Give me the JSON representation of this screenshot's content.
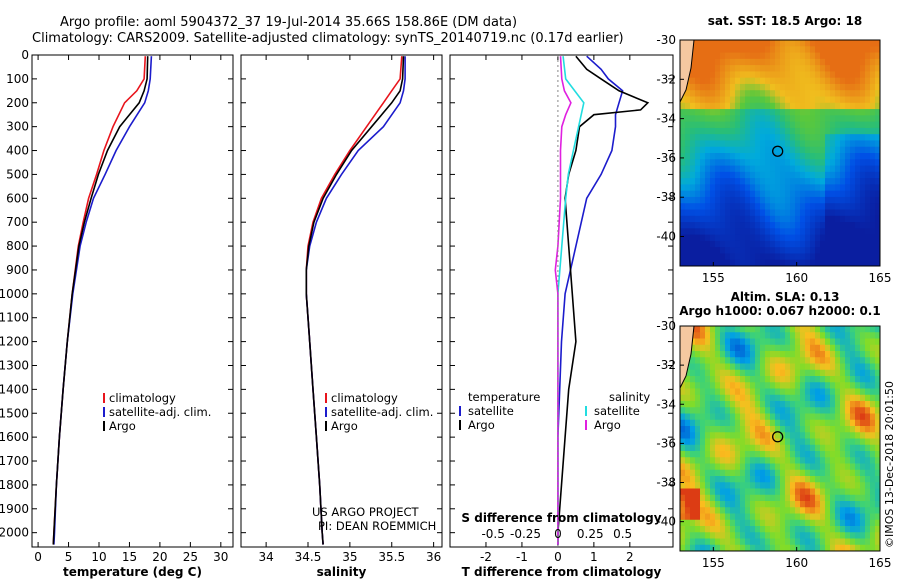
{
  "header": {
    "title_line1": "Argo profile: aoml 5904372_37 19-Jul-2014 35.66S 158.86E (DM data)",
    "title_line2": "Climatology: CARS2009. Satellite-adjusted climatology: synTS_20140719.nc (0.17d earlier)"
  },
  "colors": {
    "climatology": "#e8141c",
    "satellite": "#1c1ccc",
    "argo": "#000000",
    "sat_salinity": "#22dde0",
    "argo_salinity": "#e020e0"
  },
  "chart_data": [
    {
      "type": "line",
      "name": "temperature-profile",
      "xlabel": "temperature (deg C)",
      "ylabel": "",
      "xlim": [
        -1,
        32
      ],
      "ylim": [
        2060,
        0
      ],
      "xticks": [
        0,
        5,
        10,
        15,
        20,
        25,
        30
      ],
      "yticks": [
        0,
        100,
        200,
        300,
        400,
        500,
        600,
        700,
        800,
        900,
        1000,
        1100,
        1200,
        1300,
        1400,
        1500,
        1600,
        1700,
        1800,
        1900,
        2000
      ],
      "legend": [
        "climatology",
        "satellite-adj. clim.",
        "Argo"
      ],
      "series": [
        {
          "name": "climatology",
          "depth": [
            5,
            100,
            150,
            200,
            300,
            400,
            500,
            600,
            700,
            800,
            1000,
            1200,
            1400,
            1600,
            1800,
            2000,
            2050
          ],
          "values": [
            17.6,
            17.4,
            16.2,
            14.2,
            12.3,
            10.8,
            9.6,
            8.3,
            7.4,
            6.6,
            5.6,
            4.8,
            4.1,
            3.5,
            3.0,
            2.6,
            2.5
          ]
        },
        {
          "name": "satellite-adj. clim.",
          "depth": [
            5,
            100,
            150,
            200,
            300,
            400,
            500,
            600,
            700,
            800,
            1000,
            1200,
            1400,
            1600,
            1800,
            2000,
            2050
          ],
          "values": [
            18.6,
            18.4,
            18.1,
            17.5,
            15.0,
            12.8,
            11.0,
            9.1,
            7.9,
            6.9,
            5.7,
            4.8,
            4.1,
            3.5,
            3.0,
            2.7,
            2.6
          ]
        },
        {
          "name": "Argo",
          "depth": [
            5,
            100,
            150,
            200,
            300,
            400,
            500,
            600,
            700,
            800,
            1000,
            1200,
            1400,
            1600,
            1800,
            2000,
            2050
          ],
          "values": [
            18.0,
            17.9,
            17.4,
            16.6,
            13.4,
            11.4,
            9.9,
            8.7,
            7.6,
            6.7,
            5.6,
            4.8,
            4.1,
            3.5,
            3.0,
            2.6,
            2.5
          ]
        }
      ]
    },
    {
      "type": "line",
      "name": "salinity-profile",
      "xlabel": "salinity",
      "ylabel": "",
      "xlim": [
        33.7,
        36.1
      ],
      "ylim": [
        2060,
        0
      ],
      "xticks": [
        34,
        34.5,
        35,
        35.5,
        36
      ],
      "xticklabels": [
        "34",
        "34.5",
        "35",
        "35.5",
        "36"
      ],
      "legend": [
        "climatology",
        "satellite-adj. clim.",
        "Argo"
      ],
      "annotation": [
        "US ARGO PROJECT",
        "PI: DEAN ROEMMICH"
      ],
      "series": [
        {
          "name": "climatology",
          "depth": [
            5,
            100,
            150,
            200,
            300,
            400,
            500,
            600,
            700,
            800,
            900,
            1000,
            1200,
            1400,
            1600,
            1800,
            2000,
            2050
          ],
          "values": [
            35.62,
            35.6,
            35.5,
            35.4,
            35.2,
            35.0,
            34.82,
            34.66,
            34.56,
            34.5,
            34.48,
            34.48,
            34.52,
            34.56,
            34.6,
            34.64,
            34.67,
            34.68
          ]
        },
        {
          "name": "satellite-adj. clim.",
          "depth": [
            5,
            100,
            150,
            200,
            300,
            400,
            500,
            600,
            700,
            800,
            900,
            1000,
            1200,
            1400,
            1600,
            1800,
            2000,
            2050
          ],
          "values": [
            35.66,
            35.66,
            35.64,
            35.6,
            35.4,
            35.1,
            34.9,
            34.72,
            34.6,
            34.52,
            34.48,
            34.48,
            34.52,
            34.56,
            34.6,
            34.64,
            34.67,
            34.68
          ]
        },
        {
          "name": "Argo",
          "depth": [
            5,
            100,
            150,
            200,
            300,
            400,
            500,
            600,
            700,
            800,
            900,
            1000,
            1200,
            1400,
            1600,
            1800,
            2000,
            2050
          ],
          "values": [
            35.64,
            35.63,
            35.6,
            35.5,
            35.26,
            35.02,
            34.84,
            34.68,
            34.57,
            34.51,
            34.48,
            34.48,
            34.52,
            34.56,
            34.6,
            34.64,
            34.67,
            34.68
          ]
        }
      ]
    },
    {
      "type": "line",
      "name": "difference-profile",
      "xlabel": "T difference from climatology",
      "xlabel2": "S difference from climatology",
      "xlim": [
        -3,
        3.2
      ],
      "ylim": [
        2060,
        0
      ],
      "xticks": [
        -2,
        -1,
        0,
        1,
        2
      ],
      "sticks": [
        -0.5,
        -0.25,
        0,
        0.25,
        0.5
      ],
      "sticklabels": [
        "-0.5",
        "-0.25",
        "0",
        "0.25",
        "0.5"
      ],
      "legend_headers": [
        "temperature",
        "salinity"
      ],
      "legend": [
        "satellite",
        "Argo",
        "satellite",
        "Argo"
      ],
      "series": [
        {
          "name": "T satellite",
          "depth": [
            5,
            60,
            100,
            150,
            200,
            250,
            300,
            400,
            500,
            600,
            800,
            1000,
            1200,
            1400,
            1600,
            1800,
            2000,
            2050
          ],
          "values": [
            0.8,
            1.2,
            1.4,
            1.8,
            1.7,
            1.6,
            1.6,
            1.5,
            1.2,
            0.8,
            0.5,
            0.2,
            0.1,
            0.05,
            0.0,
            0.0,
            0.0,
            0.0
          ]
        },
        {
          "name": "T Argo",
          "depth": [
            5,
            60,
            100,
            150,
            200,
            230,
            250,
            300,
            400,
            500,
            600,
            800,
            1000,
            1200,
            1400,
            1600,
            1800,
            2000,
            2050
          ],
          "values": [
            0.5,
            0.8,
            1.2,
            1.7,
            2.5,
            2.3,
            1.0,
            0.6,
            0.5,
            0.3,
            0.2,
            0.3,
            0.4,
            0.5,
            0.3,
            0.2,
            0.1,
            0.0,
            0.0
          ]
        },
        {
          "name": "S satellite",
          "depth": [
            5,
            100,
            200,
            300,
            400,
            500,
            600,
            800,
            1000,
            1200,
            1400,
            1600,
            1800,
            2000,
            2050
          ],
          "values": [
            0.04,
            0.06,
            0.2,
            0.16,
            0.12,
            0.08,
            0.06,
            0.03,
            0.0,
            0.0,
            0.0,
            0.0,
            0.0,
            0.0,
            0.0
          ]
        },
        {
          "name": "S Argo",
          "depth": [
            5,
            100,
            150,
            200,
            250,
            300,
            400,
            500,
            600,
            800,
            900,
            1000,
            1200,
            1400,
            1600,
            1800,
            2000,
            2050
          ],
          "values": [
            0.02,
            0.03,
            0.05,
            0.1,
            0.06,
            0.03,
            0.02,
            0.02,
            0.02,
            0.0,
            -0.02,
            0.0,
            0.0,
            0.0,
            0.0,
            0.0,
            0.0,
            0.0
          ]
        }
      ]
    },
    {
      "type": "heatmap",
      "name": "sst-map",
      "title": "sat. SST: 18.5 Argo: 18",
      "xlim": [
        153,
        165
      ],
      "ylim": [
        -41.5,
        -30
      ],
      "xticks": [
        155,
        160,
        165
      ],
      "yticks": [
        -30,
        -32,
        -34,
        -36,
        -38,
        -40
      ],
      "argo_position": [
        158.86,
        -35.66
      ]
    },
    {
      "type": "heatmap",
      "name": "sla-map",
      "title": "Altim. SLA: 0.13",
      "subtitle": "Argo h1000: 0.067 h2000: 0.1",
      "xlim": [
        153,
        165
      ],
      "ylim": [
        -41.5,
        -30
      ],
      "xticks": [
        155,
        160,
        165
      ],
      "yticks": [
        -30,
        -32,
        -34,
        -36,
        -38,
        -40
      ],
      "argo_position": [
        158.86,
        -35.66
      ]
    }
  ],
  "stamp": "©IMOS 13-Dec-2018 20:01:50"
}
